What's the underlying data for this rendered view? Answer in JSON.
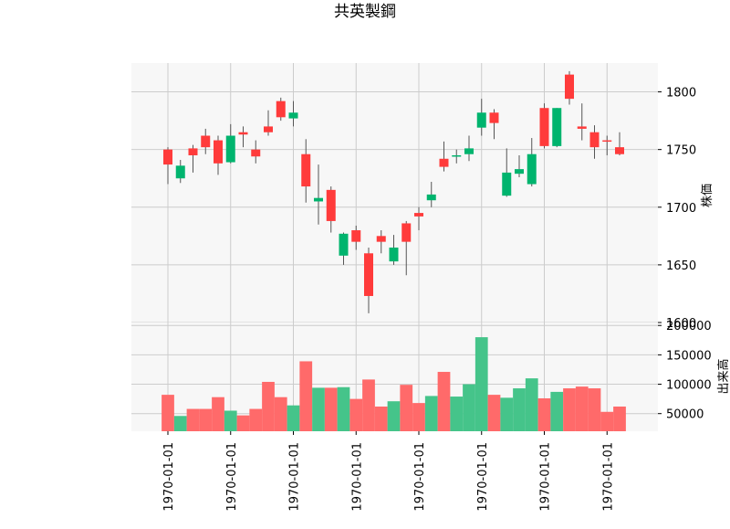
{
  "chart_data": {
    "type": "candlestick",
    "title": "共英製鋼",
    "x_tick_labels": [
      "1970-01-01",
      "1970-01-01",
      "1970-01-01",
      "1970-01-01",
      "1970-01-01",
      "1970-01-01",
      "1970-01-01",
      "1970-01-01"
    ],
    "price_panel": {
      "ylabel": "株価",
      "ylim": [
        1600,
        1825
      ],
      "yticks": [
        1600,
        1650,
        1700,
        1750,
        1800
      ],
      "grid": true
    },
    "volume_panel": {
      "ylabel": "出来高",
      "ylim": [
        20000,
        205000
      ],
      "yticks": [
        50000,
        100000,
        150000,
        200000
      ],
      "grid": true
    },
    "colors": {
      "up": "#ff3b3b",
      "down": "#00b46e",
      "grid": "#cccccc",
      "panel_bg": "#f7f7f7"
    },
    "candles": [
      {
        "open": 1737,
        "close": 1750,
        "high": 1752,
        "low": 1720,
        "volume": 82000
      },
      {
        "open": 1736,
        "close": 1725,
        "high": 1741,
        "low": 1721,
        "volume": 46000
      },
      {
        "open": 1745,
        "close": 1751,
        "high": 1754,
        "low": 1730,
        "volume": 58000
      },
      {
        "open": 1752,
        "close": 1762,
        "high": 1768,
        "low": 1746,
        "volume": 58000
      },
      {
        "open": 1738,
        "close": 1758,
        "high": 1762,
        "low": 1728,
        "volume": 78000
      },
      {
        "open": 1762,
        "close": 1739,
        "high": 1772,
        "low": 1738,
        "volume": 55000
      },
      {
        "open": 1763,
        "close": 1765,
        "high": 1770,
        "low": 1752,
        "volume": 47000
      },
      {
        "open": 1744,
        "close": 1750,
        "high": 1758,
        "low": 1738,
        "volume": 58000
      },
      {
        "open": 1765,
        "close": 1770,
        "high": 1784,
        "low": 1762,
        "volume": 104000
      },
      {
        "open": 1778,
        "close": 1792,
        "high": 1795,
        "low": 1775,
        "volume": 78000
      },
      {
        "open": 1782,
        "close": 1777,
        "high": 1792,
        "low": 1770,
        "volume": 64000
      },
      {
        "open": 1718,
        "close": 1746,
        "high": 1759,
        "low": 1704,
        "volume": 139000
      },
      {
        "open": 1708,
        "close": 1705,
        "high": 1737,
        "low": 1685,
        "volume": 94000
      },
      {
        "open": 1688,
        "close": 1715,
        "high": 1718,
        "low": 1678,
        "volume": 94000
      },
      {
        "open": 1677,
        "close": 1658,
        "high": 1678,
        "low": 1650,
        "volume": 95000
      },
      {
        "open": 1670,
        "close": 1680,
        "high": 1684,
        "low": 1663,
        "volume": 75000
      },
      {
        "open": 1623,
        "close": 1660,
        "high": 1665,
        "low": 1608,
        "volume": 108000
      },
      {
        "open": 1670,
        "close": 1675,
        "high": 1680,
        "low": 1660,
        "volume": 62000
      },
      {
        "open": 1665,
        "close": 1653,
        "high": 1676,
        "low": 1650,
        "volume": 71000
      },
      {
        "open": 1670,
        "close": 1686,
        "high": 1688,
        "low": 1641,
        "volume": 99000
      },
      {
        "open": 1692,
        "close": 1695,
        "high": 1700,
        "low": 1680,
        "volume": 68000
      },
      {
        "open": 1711,
        "close": 1706,
        "high": 1722,
        "low": 1700,
        "volume": 80000
      },
      {
        "open": 1735,
        "close": 1742,
        "high": 1757,
        "low": 1731,
        "volume": 121000
      },
      {
        "open": 1745,
        "close": 1744,
        "high": 1750,
        "low": 1738,
        "volume": 79000
      },
      {
        "open": 1751,
        "close": 1746,
        "high": 1762,
        "low": 1740,
        "volume": 100000
      },
      {
        "open": 1782,
        "close": 1769,
        "high": 1794,
        "low": 1762,
        "volume": 180000
      },
      {
        "open": 1773,
        "close": 1782,
        "high": 1785,
        "low": 1759,
        "volume": 82000
      },
      {
        "open": 1730,
        "close": 1710,
        "high": 1751,
        "low": 1709,
        "volume": 77000
      },
      {
        "open": 1733,
        "close": 1729,
        "high": 1745,
        "low": 1726,
        "volume": 93000
      },
      {
        "open": 1746,
        "close": 1720,
        "high": 1760,
        "low": 1718,
        "volume": 110000
      },
      {
        "open": 1753,
        "close": 1786,
        "high": 1790,
        "low": 1751,
        "volume": 76000
      },
      {
        "open": 1786,
        "close": 1753,
        "high": 1786,
        "low": 1752,
        "volume": 87000
      },
      {
        "open": 1794,
        "close": 1815,
        "high": 1818,
        "low": 1789,
        "volume": 93000
      },
      {
        "open": 1768,
        "close": 1770,
        "high": 1790,
        "low": 1758,
        "volume": 96000
      },
      {
        "open": 1752,
        "close": 1765,
        "high": 1771,
        "low": 1742,
        "volume": 93000
      },
      {
        "open": 1757,
        "close": 1758,
        "high": 1762,
        "low": 1745,
        "volume": 53000
      },
      {
        "open": 1746,
        "close": 1752,
        "high": 1765,
        "low": 1745,
        "volume": 62000
      }
    ]
  }
}
